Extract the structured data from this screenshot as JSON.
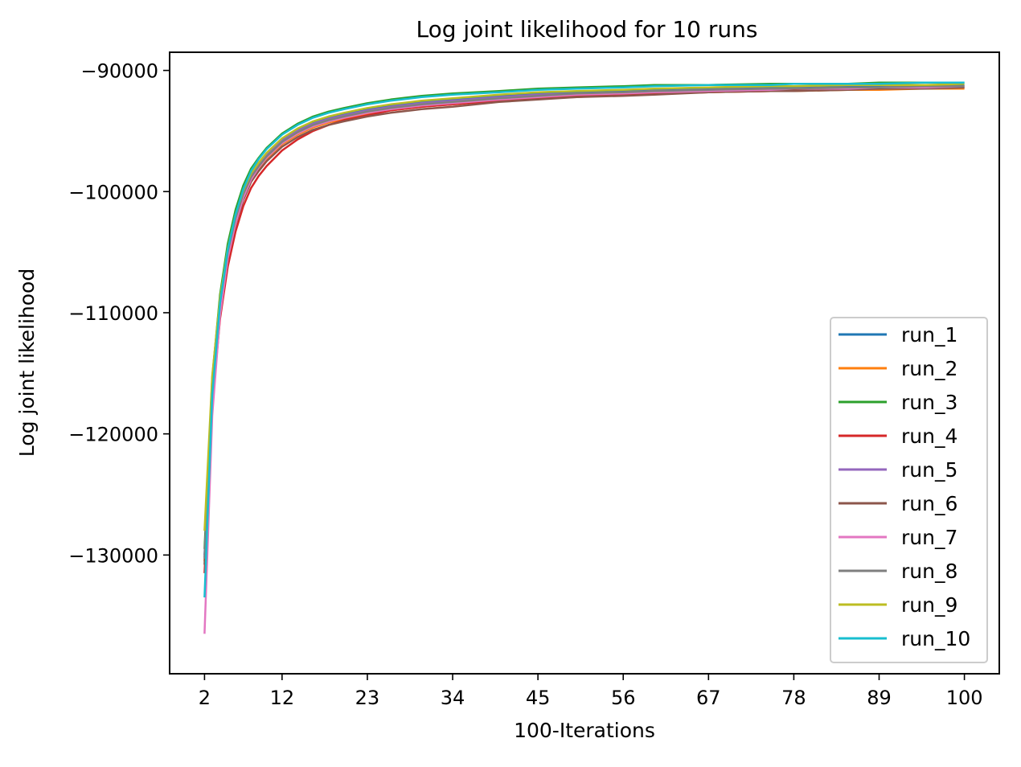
{
  "chart_data": {
    "type": "line",
    "title": "Log joint likelihood for 10 runs",
    "xlabel": "100-Iterations",
    "ylabel": "Log joint likelihood",
    "xlim": [
      -2.5,
      104.5
    ],
    "ylim": [
      -139800,
      -88500
    ],
    "xticks": [
      2,
      12,
      23,
      34,
      45,
      56,
      67,
      78,
      89,
      100
    ],
    "yticks": [
      -90000,
      -100000,
      -110000,
      -120000,
      -130000
    ],
    "ytick_labels": [
      "−90000",
      "−100000",
      "−110000",
      "−120000",
      "−130000"
    ],
    "grid": false,
    "legend_position": "lower right",
    "x": [
      2,
      3,
      4,
      5,
      6,
      7,
      8,
      9,
      10,
      12,
      14,
      16,
      18,
      20,
      23,
      26,
      30,
      34,
      40,
      45,
      50,
      56,
      60,
      67,
      75,
      78,
      85,
      89,
      95,
      100
    ],
    "series": [
      {
        "name": "run_1",
        "color": "#1f77b4",
        "values": [
          -130000,
          -116000,
          -109000,
          -104800,
          -102000,
          -100000,
          -98600,
          -97700,
          -96900,
          -95700,
          -94900,
          -94300,
          -93900,
          -93600,
          -93200,
          -92900,
          -92600,
          -92400,
          -92100,
          -91900,
          -91800,
          -91700,
          -91600,
          -91500,
          -91400,
          -91400,
          -91300,
          -91300,
          -91200,
          -91200
        ]
      },
      {
        "name": "run_2",
        "color": "#ff7f0e",
        "values": [
          -130500,
          -116400,
          -109400,
          -105200,
          -102400,
          -100400,
          -99000,
          -98100,
          -97300,
          -96100,
          -95300,
          -94700,
          -94300,
          -94000,
          -93600,
          -93300,
          -93000,
          -92800,
          -92500,
          -92300,
          -92200,
          -92000,
          -91900,
          -91800,
          -91700,
          -91700,
          -91600,
          -91600,
          -91500,
          -91500
        ]
      },
      {
        "name": "run_3",
        "color": "#2ca02c",
        "values": [
          -129500,
          -115400,
          -108500,
          -104300,
          -101500,
          -99500,
          -98100,
          -97200,
          -96400,
          -95200,
          -94400,
          -93800,
          -93400,
          -93100,
          -92700,
          -92400,
          -92100,
          -91900,
          -91700,
          -91500,
          -91400,
          -91300,
          -91200,
          -91200,
          -91100,
          -91100,
          -91100,
          -91000,
          -91000,
          -91000
        ]
      },
      {
        "name": "run_4",
        "color": "#d62728",
        "values": [
          -131500,
          -117500,
          -110500,
          -106200,
          -103300,
          -101200,
          -99700,
          -98700,
          -97900,
          -96600,
          -95700,
          -95000,
          -94500,
          -94100,
          -93700,
          -93300,
          -93000,
          -92800,
          -92500,
          -92300,
          -92100,
          -92000,
          -91900,
          -91800,
          -91700,
          -91600,
          -91500,
          -91500,
          -91400,
          -91400
        ]
      },
      {
        "name": "run_5",
        "color": "#9467bd",
        "values": [
          -130200,
          -116100,
          -109100,
          -104900,
          -102100,
          -100100,
          -98700,
          -97800,
          -97000,
          -95800,
          -95000,
          -94400,
          -94000,
          -93700,
          -93300,
          -93000,
          -92700,
          -92500,
          -92200,
          -92000,
          -91900,
          -91800,
          -91700,
          -91600,
          -91500,
          -91500,
          -91400,
          -91400,
          -91300,
          -91300
        ]
      },
      {
        "name": "run_6",
        "color": "#8c564b",
        "values": [
          -130800,
          -116700,
          -109700,
          -105500,
          -102700,
          -100700,
          -99200,
          -98300,
          -97500,
          -96300,
          -95500,
          -94900,
          -94500,
          -94200,
          -93800,
          -93500,
          -93200,
          -93000,
          -92600,
          -92400,
          -92200,
          -92100,
          -92000,
          -91800,
          -91700,
          -91700,
          -91600,
          -91500,
          -91500,
          -91400
        ]
      },
      {
        "name": "run_7",
        "color": "#e377c2",
        "values": [
          -136500,
          -118500,
          -110200,
          -105500,
          -102600,
          -100500,
          -99000,
          -98000,
          -97200,
          -96000,
          -95200,
          -94600,
          -94200,
          -93900,
          -93500,
          -93200,
          -92900,
          -92700,
          -92400,
          -92200,
          -92000,
          -91900,
          -91800,
          -91700,
          -91600,
          -91500,
          -91500,
          -91400,
          -91400,
          -91300
        ]
      },
      {
        "name": "run_8",
        "color": "#7f7f7f",
        "values": [
          -130300,
          -116200,
          -109200,
          -105000,
          -102200,
          -100200,
          -98800,
          -97900,
          -97100,
          -95900,
          -95100,
          -94500,
          -94100,
          -93800,
          -93400,
          -93100,
          -92800,
          -92600,
          -92300,
          -92100,
          -91900,
          -91800,
          -91700,
          -91600,
          -91500,
          -91500,
          -91400,
          -91400,
          -91300,
          -91300
        ]
      },
      {
        "name": "run_9",
        "color": "#bcbd22",
        "values": [
          -128000,
          -115200,
          -108800,
          -104700,
          -101900,
          -99900,
          -98500,
          -97600,
          -96800,
          -95600,
          -94800,
          -94200,
          -93800,
          -93500,
          -93100,
          -92800,
          -92500,
          -92300,
          -92000,
          -91800,
          -91700,
          -91600,
          -91500,
          -91400,
          -91300,
          -91300,
          -91200,
          -91200,
          -91200,
          -91100
        ]
      },
      {
        "name": "run_10",
        "color": "#17becf",
        "values": [
          -133500,
          -116800,
          -109200,
          -104800,
          -101900,
          -99800,
          -98300,
          -97300,
          -96500,
          -95300,
          -94500,
          -93900,
          -93500,
          -93200,
          -92800,
          -92500,
          -92200,
          -92000,
          -91800,
          -91600,
          -91500,
          -91400,
          -91300,
          -91200,
          -91200,
          -91100,
          -91100,
          -91100,
          -91000,
          -91000
        ]
      }
    ]
  }
}
